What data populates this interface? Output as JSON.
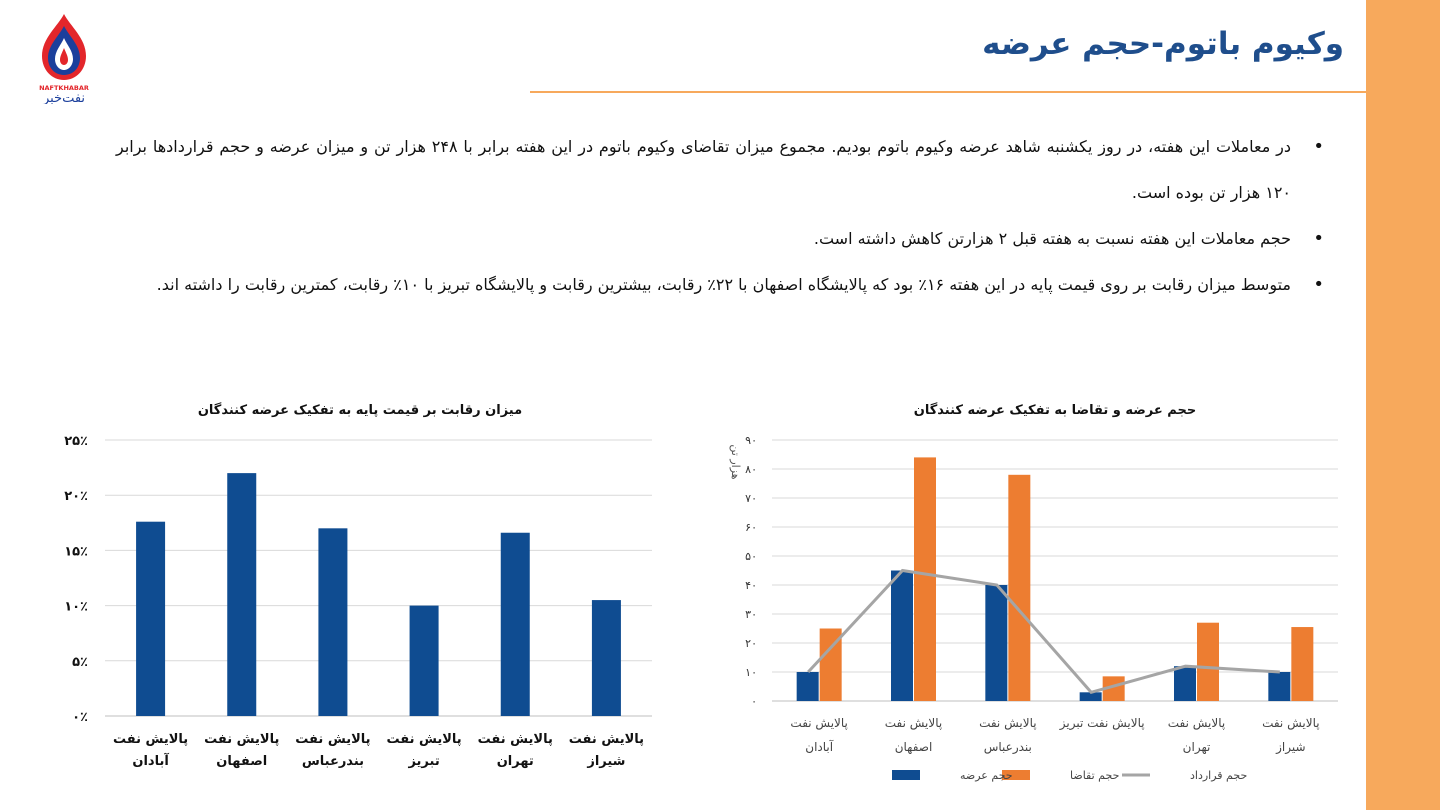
{
  "header": {
    "title": "وکیوم باتوم-حجم عرضه",
    "logo_text_latin": "NAFTKHABAR",
    "logo_text_fa": "نفت‌خبر"
  },
  "bullets": [
    "در معاملات این هفته، در روز یکشنبه شاهد عرضه وکیوم باتوم بودیم. مجموع میزان تقاضای وکیوم باتوم در این هفته برابر با ۲۴۸ هزار تن و میزان عرضه و حجم قراردادها برابر ۱۲۰ هزار تن بوده است.",
    "حجم معاملات این هفته نسبت به هفته قبل ۲ هزارتن کاهش داشته است.",
    "متوسط میزان رقابت بر روی قیمت پایه در این هفته ۱۶٪ بود که پالایشگاه اصفهان با ۲۲٪ رقابت، بیشترین رقابت و پالایشگاه تبریز با ۱۰٪ رقابت، کمترین رقابت را داشته اند."
  ],
  "colors": {
    "accent": "#f7a95c",
    "title": "#1f4e8c",
    "bar_blue": "#0f4c91",
    "bar_orange": "#ed7d31",
    "line_gray": "#a5a5a5"
  },
  "chart_data": [
    {
      "type": "bar",
      "title": "میزان رقابت بر قیمت پایه به تفکیک عرضه کنندگان",
      "categories": [
        [
          "پالایش نفت",
          "آبادان"
        ],
        [
          "پالایش نفت",
          "اصفهان"
        ],
        [
          "پالایش نفت",
          "بندرعباس"
        ],
        [
          "پالایش نفت",
          "تبریز"
        ],
        [
          "پالایش نفت",
          "تهران"
        ],
        [
          "پالایش نفت",
          "شیراز"
        ]
      ],
      "values": [
        17.6,
        22,
        17,
        10,
        16.6,
        10.5
      ],
      "ylim": [
        0,
        25
      ],
      "yticks": [
        "۰٪",
        "۵٪",
        "۱۰٪",
        "۱۵٪",
        "۲۰٪",
        "۲۵٪"
      ],
      "grid": true
    },
    {
      "type": "bar",
      "title": "حجم عرضه و تقاضا به تفکیک عرضه کنندگان",
      "ylabel": "هزار تن",
      "categories": [
        [
          "پالایش نفت",
          "آبادان"
        ],
        [
          "پالایش نفت",
          "اصفهان"
        ],
        [
          "پالایش نفت",
          "بندرعباس"
        ],
        [
          "پالایش نفت تبریز"
        ],
        [
          "پالایش نفت",
          "تهران"
        ],
        [
          "پالایش نفت",
          "شیراز"
        ]
      ],
      "series": [
        {
          "name": "حجم عرضه",
          "type": "bar",
          "values": [
            10,
            45,
            40,
            3,
            12,
            10
          ]
        },
        {
          "name": "حجم تقاضا",
          "type": "bar",
          "values": [
            25,
            84,
            78,
            8.5,
            27,
            25.5
          ]
        },
        {
          "name": "حجم قرارداد",
          "type": "line",
          "values": [
            10,
            45,
            40,
            3,
            12,
            10
          ]
        }
      ],
      "ylim": [
        0,
        90
      ],
      "yticks": [
        "۰",
        "۱۰",
        "۲۰",
        "۳۰",
        "۴۰",
        "۵۰",
        "۶۰",
        "۷۰",
        "۸۰",
        "۹۰"
      ],
      "grid": true,
      "legend_position": "bottom"
    }
  ]
}
